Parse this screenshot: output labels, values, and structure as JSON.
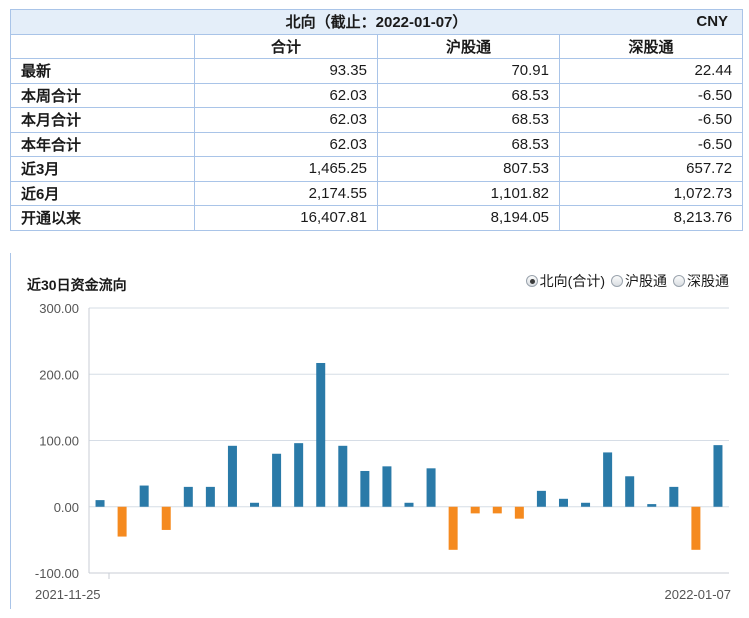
{
  "table": {
    "title": "北向（截止：2022-01-07）",
    "currency": "CNY",
    "headers": [
      "",
      "合计",
      "沪股通",
      "深股通"
    ],
    "rows": [
      {
        "label": "最新",
        "total": "93.35",
        "sh": "70.91",
        "sz": "22.44"
      },
      {
        "label": "本周合计",
        "total": "62.03",
        "sh": "68.53",
        "sz": "-6.50"
      },
      {
        "label": "本月合计",
        "total": "62.03",
        "sh": "68.53",
        "sz": "-6.50"
      },
      {
        "label": "本年合计",
        "total": "62.03",
        "sh": "68.53",
        "sz": "-6.50"
      },
      {
        "label": "近3月",
        "total": "1,465.25",
        "sh": "807.53",
        "sz": "657.72"
      },
      {
        "label": "近6月",
        "total": "2,174.55",
        "sh": "1,101.82",
        "sz": "1,072.73"
      },
      {
        "label": "开通以来",
        "total": "16,407.81",
        "sh": "8,194.05",
        "sz": "8,213.76"
      }
    ]
  },
  "chart_panel": {
    "title": "近30日资金流向",
    "options": [
      {
        "label": "北向(合计)",
        "selected": true
      },
      {
        "label": "沪股通",
        "selected": false
      },
      {
        "label": "深股通",
        "selected": false
      }
    ]
  },
  "chart_data": {
    "type": "bar",
    "title": "近30日资金流向",
    "x_start_label": "2021-11-25",
    "x_end_label": "2022-01-07",
    "ylim": [
      -100,
      300
    ],
    "yticks": [
      "300.00",
      "200.00",
      "100.00",
      "0.00",
      "-100.00"
    ],
    "ytick_values": [
      300,
      200,
      100,
      0,
      -100
    ],
    "grid": true,
    "colors": {
      "positive": "#2a7aa8",
      "negative": "#f58a1f"
    },
    "values": [
      10,
      -45,
      32,
      -35,
      30,
      30,
      92,
      6,
      80,
      96,
      217,
      92,
      54,
      61,
      6,
      58,
      -65,
      -10,
      -10,
      -18,
      24,
      12,
      6,
      82,
      46,
      4,
      30,
      -65,
      93
    ]
  }
}
